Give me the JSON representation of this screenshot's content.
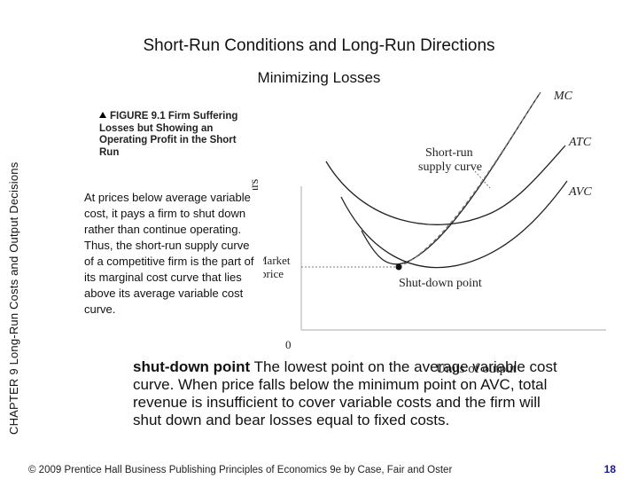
{
  "header": {
    "title": "Short-Run Conditions and Long-Run Directions",
    "subtitle": "Minimizing Losses"
  },
  "side_label": "CHAPTER 9 Long-Run Costs and Output Decisions",
  "figure": {
    "caption": "FIGURE 9.1 Firm Suffering Losses but Showing an Operating Profit in the Short Run",
    "curve_labels": {
      "mc": "MC",
      "atc": "ATC",
      "avc": "AVC"
    },
    "supply_label_line1": "Short-run",
    "supply_label_line2": "supply curve",
    "y_axis_label": "Dollars",
    "x_axis_label": "Units of output",
    "origin_label": "0",
    "price_label_line1": "Market",
    "price_label_line2": "price",
    "shutdown_label": "Shut-down point"
  },
  "note": {
    "line1": "At prices below average variable cost, it pays a firm to shut down rather than continue operating.",
    "line2": "Thus, the short-run supply curve of a competitive firm is the part of its marginal cost curve that lies above its average variable cost curve."
  },
  "definition": {
    "term": "shut-down point",
    "text": "The lowest point on the average variable cost curve. When price falls below the minimum point on AVC, total revenue is insufficient to cover variable costs and the firm will shut down and bear losses equal to fixed costs."
  },
  "footer": {
    "copyright": "© 2009 Prentice Hall Business Publishing   Principles of Economics 9e by Case, Fair and Oster",
    "page_number": "18"
  },
  "colors": {
    "curve": "#222222",
    "dashed": "#777777",
    "axis": "#bbbbbb",
    "page_number": "#1a1aa0"
  }
}
